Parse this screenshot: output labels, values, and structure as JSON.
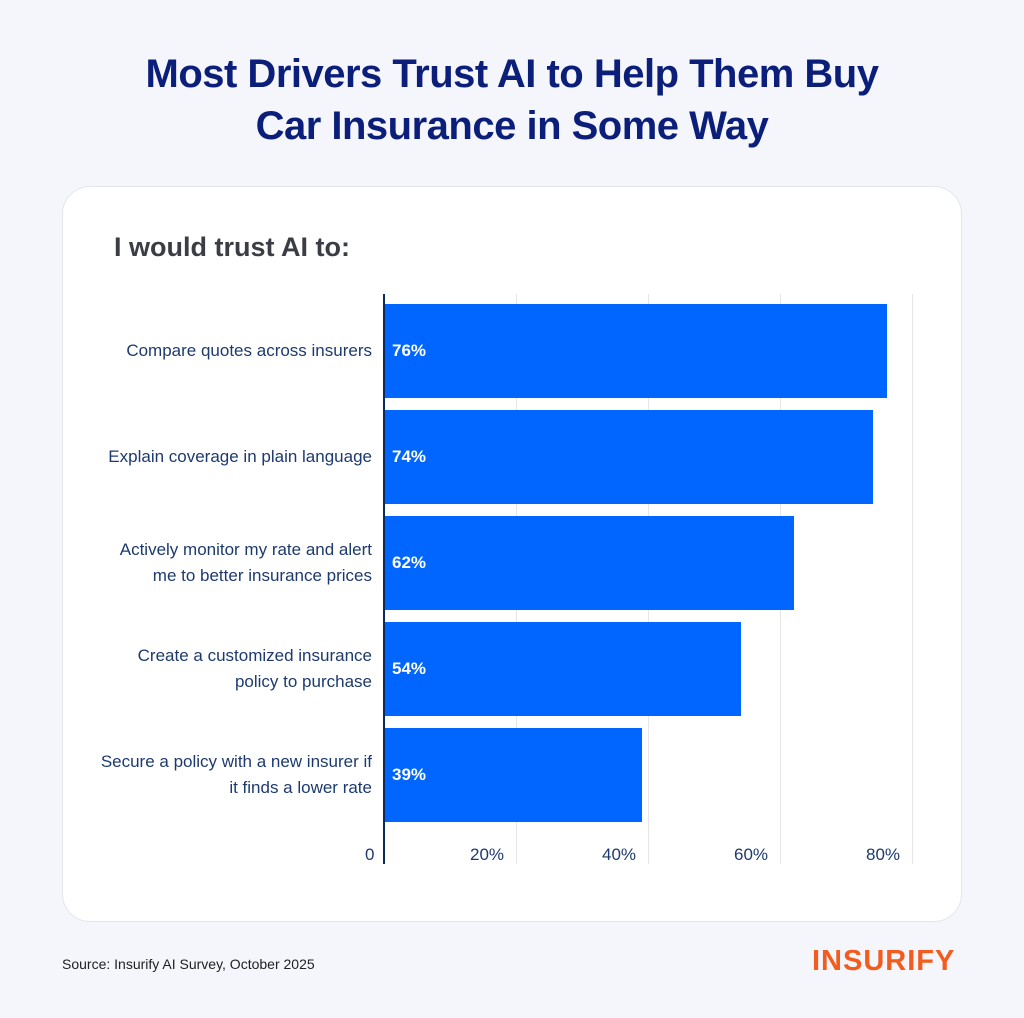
{
  "title_line1": "Most Drivers Trust AI to Help Them Buy",
  "title_line2": "Car Insurance in Some Way",
  "source": "Source: Insurify AI Survey, October 2025",
  "logo": "INSURIFY",
  "chart_data": {
    "type": "bar",
    "orientation": "horizontal",
    "title": "I would trust AI to:",
    "categories": [
      "Compare quotes across insurers",
      "Explain coverage in plain language",
      "Actively monitor my rate and alert me to better insurance prices",
      "Create a customized insurance policy to purchase",
      "Secure a policy with a new insurer if it finds a lower rate"
    ],
    "values": [
      76,
      74,
      62,
      54,
      39
    ],
    "value_labels": [
      "76%",
      "74%",
      "62%",
      "54%",
      "39%"
    ],
    "xlim": [
      0,
      80
    ],
    "x_ticks": [
      "0",
      "20%",
      "40%",
      "60%",
      "80%"
    ],
    "grid": true,
    "bar_color": "#0066ff"
  }
}
